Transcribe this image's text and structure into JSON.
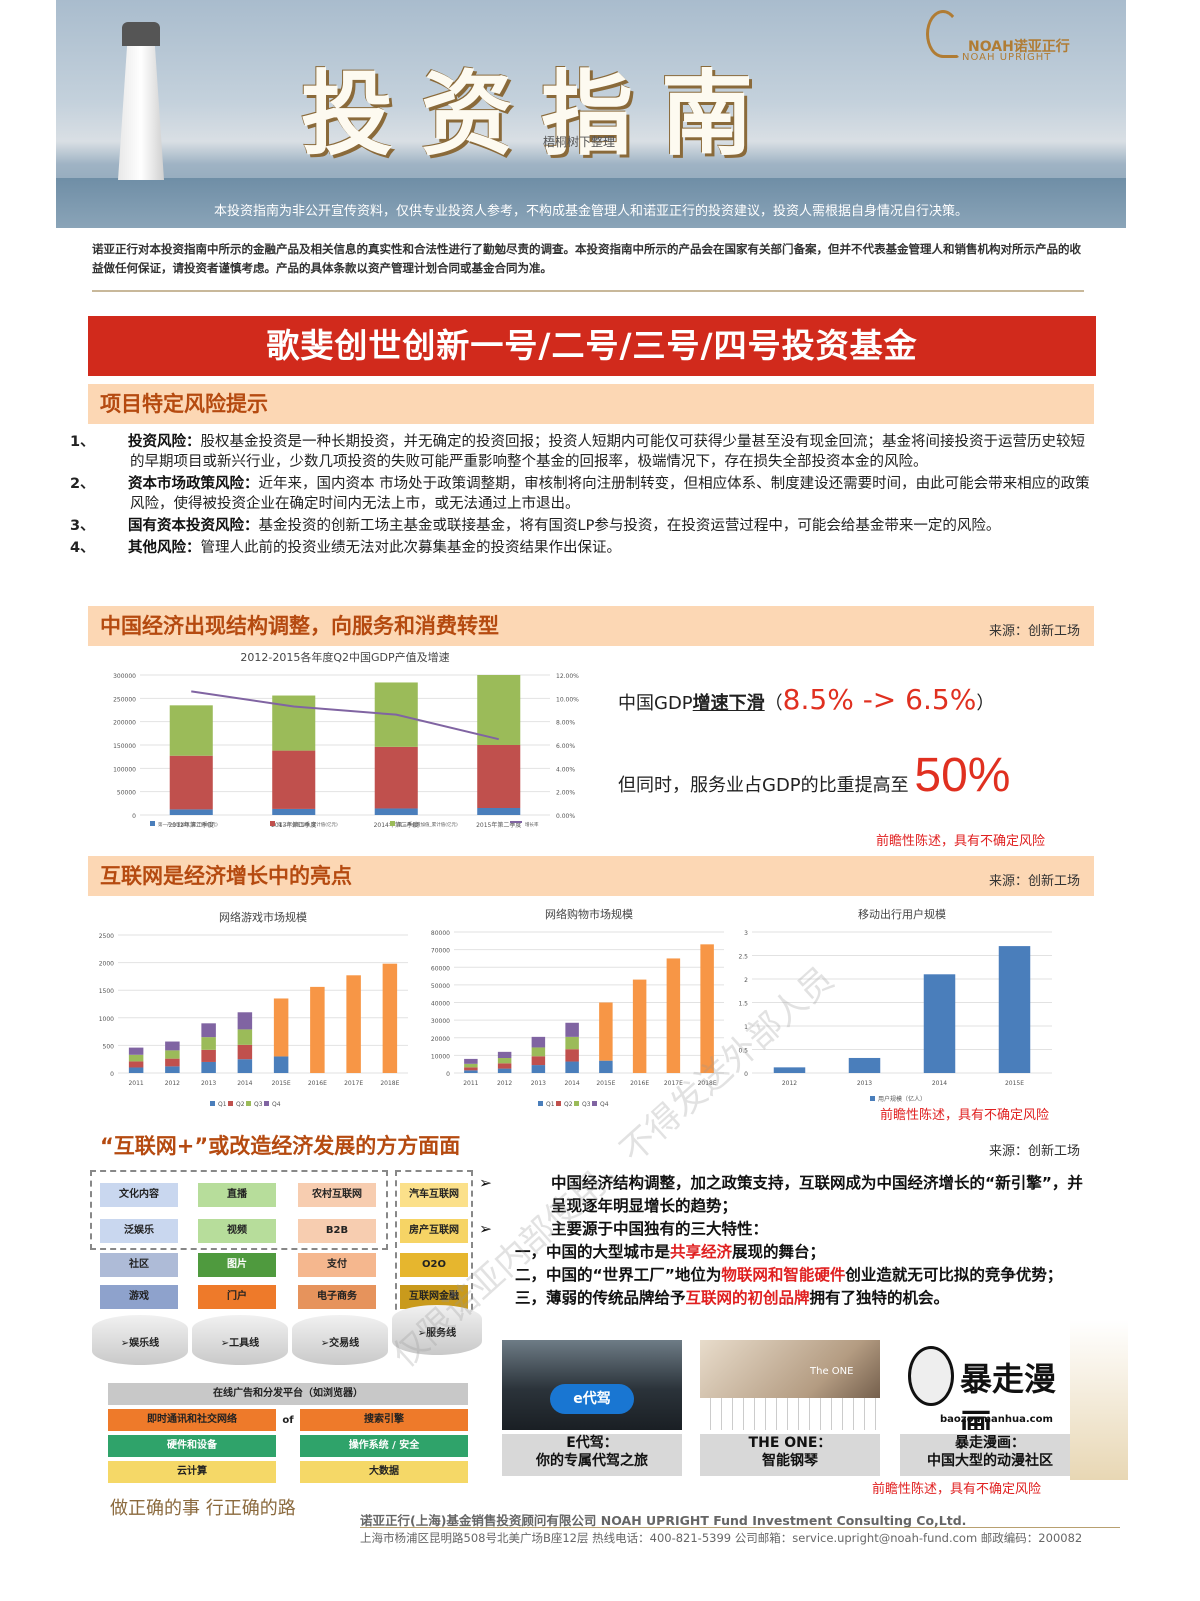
{
  "header": {
    "title": "投资指南",
    "small_credit": "梧桐树下整理",
    "logo_cn": "NOAH诺亚正行",
    "logo_en": "NOAH UPRIGHT",
    "tagline": "本投资指南为非公开宣传资料，仅供专业投资人参考，不构成基金管理人和诺亚正行的投资建议，投资人需根据自身情况自行决策。"
  },
  "disclaimer": "诺亚正行对本投资指南中所示的金融产品及相关信息的真实性和合法性进行了勤勉尽责的调查。本投资指南中所示的产品会在国家有关部门备案，但并不代表基金管理人和销售机构对所示产品的收益做任何保证，请投资者谨慎考虑。产品的具体条款以资产管理计划合同或基金合同为准。",
  "fund_title": "歌斐创世创新一号/二号/三号/四号投资基金",
  "sections": {
    "risk": {
      "title": "项目特定风险提示"
    },
    "economy": {
      "title": "中国经济出现结构调整，向服务和消费转型",
      "source": "来源：创新工场"
    },
    "internet": {
      "title": "互联网是经济增长中的亮点",
      "source": "来源：创新工场"
    },
    "plus": {
      "title": "“互联网+”或改造经济发展的方方面面",
      "source": "来源：创新工场"
    }
  },
  "risks": [
    {
      "num": "1、",
      "head": "投资风险：",
      "text": "股权基金投资是一种长期投资，并无确定的投资回报；投资人短期内可能仅可获得少量甚至没有现金回流；基金将间接投资于运营历史较短的早期项目或新兴行业，少数几项投资的失败可能严重影响整个基金的回报率，极端情况下，存在损失全部投资本金的风险。"
    },
    {
      "num": "2、",
      "head": "资本市场政策风险：",
      "text": "近年来，国内资本 市场处于政策调整期，审核制将向注册制转变，但相应体系、制度建设还需要时间，由此可能会带来相应的政策风险，使得被投资企业在确定时间内无法上市，或无法通过上市退出。"
    },
    {
      "num": "3、",
      "head": "国有资本投资风险：",
      "text": "基金投资的创新工场主基金或联接基金，将有国资LP参与投资，在投资运营过程中，可能会给基金带来一定的风险。"
    },
    {
      "num": "4、",
      "head": "其他风险：",
      "text": "管理人此前的投资业绩无法对此次募集基金的投资结果作出保证。"
    }
  ],
  "gdp_text": {
    "line1_pre": "中国GDP",
    "line1_u": "增速下滑",
    "line1_open": "（",
    "line1_red": "8.5% -> 6.5%",
    "line1_close": "）",
    "line2_pre": "但同时，服务业占GDP的比重提高至",
    "line2_red": "50%"
  },
  "warning": "前瞻性陈述，具有不确定风险",
  "chart_data": [
    {
      "type": "bar",
      "title": "2012-2015各年度Q2中国GDP产值及增速",
      "categories": [
        "2012年第二季度",
        "2013年第二季度",
        "2014年第二季度",
        "2015年第二季度"
      ],
      "series": [
        {
          "name": "第一产业增加值_累计值(亿元)",
          "values": [
            12000,
            13000,
            14000,
            15000
          ],
          "color": "#4a7ebb"
        },
        {
          "name": "第二产业增加值_累计值(亿元)",
          "values": [
            115000,
            125000,
            132000,
            135000
          ],
          "color": "#c0504d"
        },
        {
          "name": "第三产业增加值_累计值(亿元)",
          "values": [
            108000,
            118000,
            138000,
            150000
          ],
          "color": "#9bbb59"
        }
      ],
      "line": {
        "name": "增长率",
        "values": [
          10.6,
          9.3,
          8.6,
          6.5
        ],
        "color": "#8064a2"
      },
      "ylim": [
        0,
        300000
      ],
      "y_ticks": [
        "300000",
        "250000",
        "200000",
        "150000",
        "100000",
        "50000",
        "0"
      ],
      "y2_ticks": [
        "12.00%",
        "10.00%",
        "8.00%",
        "6.00%",
        "4.00%",
        "2.00%",
        "0.00%"
      ],
      "y2lim": [
        0,
        12
      ]
    },
    {
      "type": "bar",
      "title": "网络游戏市场规模",
      "categories": [
        "2011",
        "2012",
        "2013",
        "2014",
        "2015E",
        "2016E",
        "2017E",
        "2018E"
      ],
      "series": [
        {
          "name": "Q1",
          "values": [
            100,
            120,
            200,
            250,
            300,
            0,
            0,
            0
          ],
          "color": "#4a7ebb"
        },
        {
          "name": "Q2",
          "values": [
            110,
            140,
            220,
            260,
            0,
            0,
            0,
            0
          ],
          "color": "#c0504d"
        },
        {
          "name": "Q3",
          "values": [
            120,
            150,
            230,
            280,
            0,
            0,
            0,
            0
          ],
          "color": "#9bbb59"
        },
        {
          "name": "Q4",
          "values": [
            130,
            160,
            250,
            310,
            0,
            0,
            0,
            0
          ],
          "color": "#8064a2"
        },
        {
          "name": "",
          "values": [
            0,
            0,
            0,
            0,
            1050,
            1560,
            1770,
            1980
          ],
          "color": "#f79646"
        }
      ],
      "ylim": [
        0,
        2500
      ],
      "y_ticks": [
        "2500",
        "2000",
        "1500",
        "1000",
        "500",
        "0"
      ],
      "legend": [
        "Q1",
        "Q2",
        "Q3",
        "Q4"
      ]
    },
    {
      "type": "bar",
      "title": "网络购物市场规模",
      "categories": [
        "2011",
        "2012",
        "2013",
        "2014",
        "2015E",
        "2016E",
        "2017E",
        "2018E"
      ],
      "series": [
        {
          "name": "Q1",
          "values": [
            1500,
            2500,
            4500,
            6500,
            7000,
            0,
            0,
            0
          ],
          "color": "#4a7ebb"
        },
        {
          "name": "Q2",
          "values": [
            1700,
            3000,
            5000,
            7000,
            0,
            0,
            0,
            0
          ],
          "color": "#c0504d"
        },
        {
          "name": "Q3",
          "values": [
            2000,
            3000,
            5000,
            7000,
            0,
            0,
            0,
            0
          ],
          "color": "#9bbb59"
        },
        {
          "name": "Q4",
          "values": [
            2800,
            3500,
            6000,
            8000,
            0,
            0,
            0,
            0
          ],
          "color": "#8064a2"
        },
        {
          "name": "",
          "values": [
            0,
            0,
            0,
            0,
            33000,
            53000,
            65000,
            73000
          ],
          "color": "#f79646"
        }
      ],
      "ylim": [
        0,
        80000
      ],
      "y_ticks": [
        "80000",
        "70000",
        "60000",
        "50000",
        "40000",
        "30000",
        "20000",
        "10000",
        "0"
      ],
      "legend": [
        "Q1",
        "Q2",
        "Q3",
        "Q4"
      ]
    },
    {
      "type": "bar",
      "title": "移动出行用户规模",
      "categories": [
        "2012",
        "2013",
        "2014",
        "2015E"
      ],
      "series": [
        {
          "name": "用户规模（亿人）",
          "values": [
            0.12,
            0.32,
            2.1,
            2.7
          ],
          "color": "#4a7ebb"
        }
      ],
      "ylim": [
        0,
        3
      ],
      "y_ticks": [
        "3",
        "2.5",
        "2",
        "1.5",
        "1",
        "0.5",
        "0"
      ]
    }
  ],
  "stack_diagram": {
    "col1": [
      "文化内容",
      "泛娱乐",
      "社区",
      "游戏"
    ],
    "col2": [
      "直播",
      "视频",
      "图片",
      "门户"
    ],
    "col3": [
      "农村互联网",
      "B2B",
      "支付",
      "电子商务"
    ],
    "col4": [
      "汽车互联网",
      "房产互联网",
      "O2O",
      "互联网金融"
    ],
    "lines": [
      "➢娱乐线",
      "➢工具线",
      "➢交易线",
      "➢服务线"
    ],
    "platform": "在线广告和分发平台（如浏览器）",
    "row_a": [
      "即时通讯和社交网络",
      "搜索引擎"
    ],
    "of": "of",
    "row_b": [
      "硬件和设备",
      "操作系统 / 安全"
    ],
    "row_c": [
      "云计算",
      "大数据"
    ]
  },
  "bullets": {
    "arrow": "➢",
    "b1": "中国经济结构调整，加之政策支持，互联网成为中国经济增长的“新引擎”，并呈现逐年明显增长的趋势；",
    "b2": "主要源于中国独有的三大特性：",
    "p1_pre": "一，中国的大型城市是",
    "p1_hl": "共享经济",
    "p1_post": "展现的舞台；",
    "p2_pre": "二，中国的“世界工厂”地位为",
    "p2_hl": "物联网和智能硬件",
    "p2_post": "创业造就无可比拟的竞争优势；",
    "p3_pre": "三，薄弱的传统品牌给予",
    "p3_hl": "互联网的初创品牌",
    "p3_post": "拥有了独特的机会。"
  },
  "photos": [
    {
      "cap1": "E代驾：",
      "cap2": "你的专属代驾之旅",
      "label": "e代驾"
    },
    {
      "cap1": "THE ONE：",
      "cap2": "智能钢琴",
      "label": "The ONE"
    },
    {
      "cap1": "暴走漫画：",
      "cap2": "中国大型的动漫社区",
      "label": "暴走漫画",
      "url": "baozoumanhua.com"
    }
  ],
  "footer": {
    "motto": "做正确的事 行正确的路",
    "company": "诺亚正行(上海)基金销售投资顾问有限公司   NOAH UPRIGHT Fund Investment Consulting Co,Ltd.",
    "address": "上海市杨浦区昆明路508号北美广场B座12层   热线电话：400-821-5399   公司邮箱：service.upright@noah-fund.com   邮政编码：200082"
  },
  "watermark": "仅限诺亚内部使用，不得发送外部人员"
}
